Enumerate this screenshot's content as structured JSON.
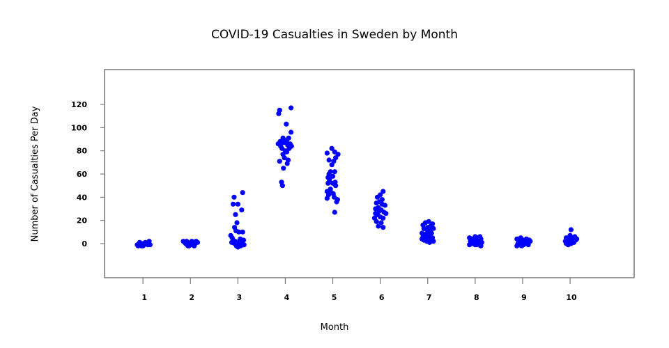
{
  "chart_data": {
    "type": "scatter",
    "title": "COVID-19 Casualties in Sweden by Month",
    "xlabel": "Month",
    "ylabel": "Number of Casualties Per Day",
    "xlim": [
      0.19,
      11.35
    ],
    "ylim": [
      -29.4,
      150
    ],
    "x_ticks": [
      1,
      2,
      3,
      4,
      5,
      6,
      7,
      8,
      9,
      10
    ],
    "y_ticks": [
      0,
      20,
      40,
      60,
      80,
      100,
      120
    ],
    "grid": false,
    "point_color": "#0000ff",
    "frame_color": "#777777",
    "series": [
      {
        "name": "Month 1",
        "points": [
          [
            0.9,
            -2
          ],
          [
            0.95,
            -1
          ],
          [
            1.0,
            0
          ],
          [
            1.05,
            1
          ],
          [
            1.1,
            -1
          ],
          [
            0.92,
            0
          ],
          [
            0.97,
            -2
          ],
          [
            1.02,
            -1
          ],
          [
            1.07,
            0
          ],
          [
            1.12,
            1
          ],
          [
            1.15,
            -1
          ],
          [
            0.88,
            -1
          ],
          [
            1.0,
            -2
          ],
          [
            1.13,
            2
          ],
          [
            0.93,
            1
          ]
        ]
      },
      {
        "name": "Month 2",
        "points": [
          [
            1.85,
            2
          ],
          [
            1.9,
            0
          ],
          [
            1.95,
            -2
          ],
          [
            2.0,
            1
          ],
          [
            2.05,
            -1
          ],
          [
            2.1,
            0
          ],
          [
            2.12,
            2
          ],
          [
            1.88,
            1
          ],
          [
            1.93,
            -1
          ],
          [
            1.98,
            0
          ],
          [
            2.03,
            2
          ],
          [
            2.08,
            -2
          ],
          [
            2.15,
            1
          ],
          [
            1.92,
            2
          ],
          [
            2.02,
            -1
          ],
          [
            2.07,
            1
          ],
          [
            1.97,
            -2
          ]
        ]
      },
      {
        "name": "Month 3",
        "points": [
          [
            3.1,
            44
          ],
          [
            2.92,
            40
          ],
          [
            2.9,
            34
          ],
          [
            3.0,
            34
          ],
          [
            3.08,
            29
          ],
          [
            2.95,
            25
          ],
          [
            2.98,
            18
          ],
          [
            2.93,
            14
          ],
          [
            2.96,
            11
          ],
          [
            3.02,
            10
          ],
          [
            3.1,
            10
          ],
          [
            2.85,
            7
          ],
          [
            2.88,
            5
          ],
          [
            2.9,
            3
          ],
          [
            3.05,
            4
          ],
          [
            3.12,
            3
          ],
          [
            2.87,
            1
          ],
          [
            2.93,
            0
          ],
          [
            3.0,
            -1
          ],
          [
            3.07,
            0
          ],
          [
            3.13,
            -1
          ],
          [
            2.97,
            -2
          ],
          [
            3.03,
            2
          ],
          [
            3.09,
            1
          ],
          [
            2.94,
            2
          ],
          [
            3.0,
            -3
          ],
          [
            3.06,
            -2
          ]
        ]
      },
      {
        "name": "Month 4",
        "points": [
          [
            3.88,
            115
          ],
          [
            3.86,
            112
          ],
          [
            4.12,
            117
          ],
          [
            4.02,
            103
          ],
          [
            4.12,
            96
          ],
          [
            3.95,
            91
          ],
          [
            4.03,
            89
          ],
          [
            3.85,
            86
          ],
          [
            3.9,
            84
          ],
          [
            3.97,
            87
          ],
          [
            4.05,
            85
          ],
          [
            4.1,
            86
          ],
          [
            4.13,
            84
          ],
          [
            3.93,
            82
          ],
          [
            4.0,
            80
          ],
          [
            4.08,
            82
          ],
          [
            3.95,
            77
          ],
          [
            4.03,
            79
          ],
          [
            3.98,
            74
          ],
          [
            4.06,
            72
          ],
          [
            3.88,
            71
          ],
          [
            4.04,
            69
          ],
          [
            3.96,
            65
          ],
          [
            3.92,
            53
          ],
          [
            3.94,
            50
          ],
          [
            3.89,
            88
          ],
          [
            4.07,
            91
          ]
        ]
      },
      {
        "name": "Month 5",
        "points": [
          [
            4.98,
            82
          ],
          [
            4.88,
            78
          ],
          [
            5.04,
            79
          ],
          [
            5.11,
            77
          ],
          [
            5.06,
            74
          ],
          [
            4.92,
            72
          ],
          [
            5.02,
            71
          ],
          [
            4.98,
            68
          ],
          [
            5.04,
            62
          ],
          [
            4.92,
            60
          ],
          [
            4.9,
            57
          ],
          [
            4.93,
            55
          ],
          [
            5.0,
            52
          ],
          [
            5.05,
            53
          ],
          [
            4.95,
            47
          ],
          [
            4.88,
            45
          ],
          [
            4.91,
            42
          ],
          [
            4.97,
            44
          ],
          [
            5.01,
            43
          ],
          [
            5.03,
            40
          ],
          [
            4.88,
            39
          ],
          [
            5.08,
            36
          ],
          [
            5.1,
            38
          ],
          [
            5.04,
            27
          ],
          [
            4.95,
            62
          ],
          [
            5.06,
            50
          ],
          [
            4.9,
            52
          ],
          [
            5.0,
            58
          ]
        ]
      },
      {
        "name": "Month 6",
        "points": [
          [
            6.06,
            45
          ],
          [
            6.0,
            42
          ],
          [
            5.94,
            40
          ],
          [
            5.92,
            35
          ],
          [
            5.98,
            36
          ],
          [
            6.04,
            34
          ],
          [
            6.1,
            33
          ],
          [
            5.9,
            30
          ],
          [
            5.96,
            31
          ],
          [
            6.02,
            29
          ],
          [
            6.08,
            27
          ],
          [
            6.12,
            26
          ],
          [
            5.94,
            25
          ],
          [
            6.0,
            23
          ],
          [
            6.06,
            22
          ],
          [
            5.88,
            22
          ],
          [
            5.92,
            19
          ],
          [
            6.02,
            18
          ],
          [
            5.96,
            15
          ],
          [
            6.06,
            14
          ],
          [
            5.98,
            28
          ],
          [
            6.04,
            38
          ],
          [
            5.9,
            26
          ]
        ]
      },
      {
        "name": "Month 7",
        "points": [
          [
            6.95,
            18
          ],
          [
            7.02,
            19
          ],
          [
            6.9,
            16
          ],
          [
            7.06,
            15
          ],
          [
            7.1,
            17
          ],
          [
            6.92,
            13
          ],
          [
            6.98,
            12
          ],
          [
            7.04,
            11
          ],
          [
            7.12,
            13
          ],
          [
            6.88,
            9
          ],
          [
            6.94,
            8
          ],
          [
            7.0,
            10
          ],
          [
            7.08,
            9
          ],
          [
            6.9,
            6
          ],
          [
            6.96,
            5
          ],
          [
            7.02,
            6
          ],
          [
            7.1,
            5
          ],
          [
            6.92,
            3
          ],
          [
            6.98,
            2
          ],
          [
            7.06,
            3
          ],
          [
            7.12,
            2
          ],
          [
            6.88,
            4
          ],
          [
            7.04,
            1
          ],
          [
            7.0,
            14
          ]
        ]
      },
      {
        "name": "Month 8",
        "points": [
          [
            7.88,
            5
          ],
          [
            7.94,
            4
          ],
          [
            8.0,
            6
          ],
          [
            8.06,
            5
          ],
          [
            8.12,
            4
          ],
          [
            7.9,
            2
          ],
          [
            7.96,
            1
          ],
          [
            8.02,
            2
          ],
          [
            8.08,
            3
          ],
          [
            8.14,
            1
          ],
          [
            7.88,
            -1
          ],
          [
            7.94,
            0
          ],
          [
            8.0,
            -1
          ],
          [
            8.06,
            0
          ],
          [
            8.12,
            -2
          ],
          [
            7.92,
            3
          ],
          [
            8.04,
            -1
          ],
          [
            8.1,
            6
          ]
        ]
      },
      {
        "name": "Month 9",
        "points": [
          [
            8.88,
            4
          ],
          [
            8.92,
            2
          ],
          [
            8.96,
            5
          ],
          [
            9.02,
            3
          ],
          [
            9.08,
            4
          ],
          [
            9.14,
            3
          ],
          [
            8.9,
            0
          ],
          [
            8.94,
            -1
          ],
          [
            9.0,
            1
          ],
          [
            9.06,
            0
          ],
          [
            9.12,
            -1
          ],
          [
            8.88,
            -2
          ],
          [
            8.98,
            -2
          ],
          [
            9.04,
            2
          ],
          [
            9.1,
            1
          ],
          [
            9.16,
            2
          ],
          [
            8.92,
            3
          ],
          [
            9.02,
            -1
          ]
        ]
      },
      {
        "name": "Month 10",
        "points": [
          [
            10.02,
            12
          ],
          [
            10.0,
            7
          ],
          [
            9.92,
            5
          ],
          [
            9.96,
            4
          ],
          [
            10.04,
            5
          ],
          [
            10.1,
            6
          ],
          [
            10.14,
            4
          ],
          [
            9.9,
            2
          ],
          [
            9.94,
            1
          ],
          [
            10.0,
            3
          ],
          [
            10.06,
            2
          ],
          [
            10.12,
            3
          ],
          [
            9.96,
            -1
          ],
          [
            10.02,
            0
          ],
          [
            9.92,
            0
          ],
          [
            10.08,
            1
          ]
        ]
      }
    ]
  }
}
